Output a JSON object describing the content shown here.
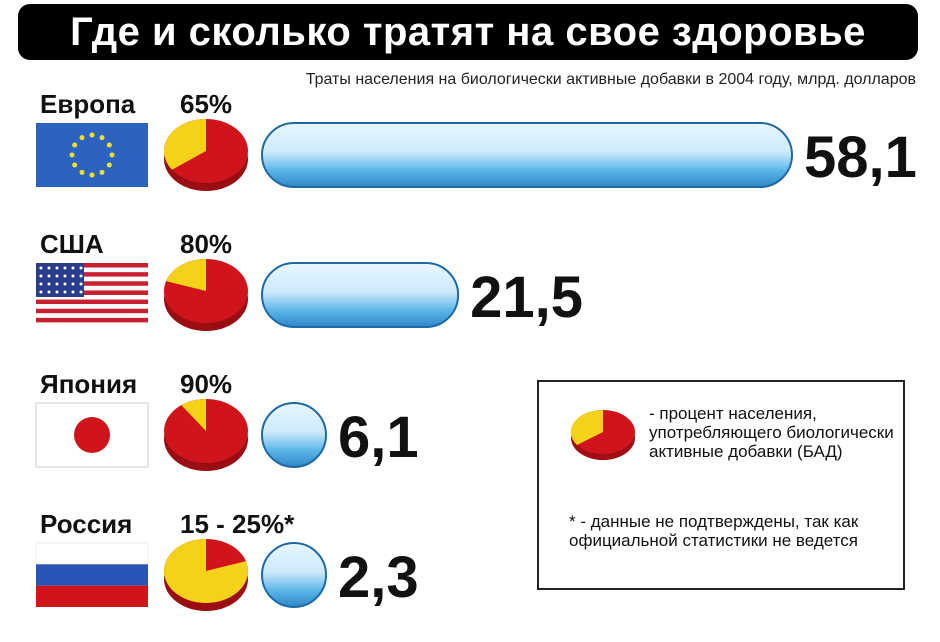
{
  "title": "Где и сколько тратят на свое здоровье",
  "subtitle": "Траты населения на биологически активные добавки в 2004 году, млрд. долларов",
  "legend": {
    "pie_desc": "- процент населения, употребляющего биологически активные добавки (БАД)",
    "note": "* - данные не подтверждены, так как официальной статистики не ведется"
  },
  "colors": {
    "pie_red": "#d0141c",
    "pie_yellow": "#f4d21a",
    "bar_blue": "#5ab4e8",
    "bar_light": "#cdeafc",
    "text": "#111111"
  },
  "chart_data": {
    "type": "bar",
    "title": "Где и сколько тратят на свое здоровье",
    "subtitle": "Траты населения на биологически активные добавки в 2004 году, млрд. долларов",
    "categories": [
      "Европа",
      "США",
      "Япония",
      "Россия"
    ],
    "values": [
      58.1,
      21.5,
      6.1,
      2.3
    ],
    "value_labels": [
      "58,1",
      "21,5",
      "6,1",
      "2,3"
    ],
    "percent_labels": [
      "65%",
      "80%",
      "90%",
      "15 - 25%*"
    ],
    "percent_share": [
      0.65,
      0.8,
      0.9,
      0.2
    ],
    "flags": [
      "eu-flag-icon",
      "usa-flag-icon",
      "japan-flag-icon",
      "russia-flag-icon"
    ]
  }
}
